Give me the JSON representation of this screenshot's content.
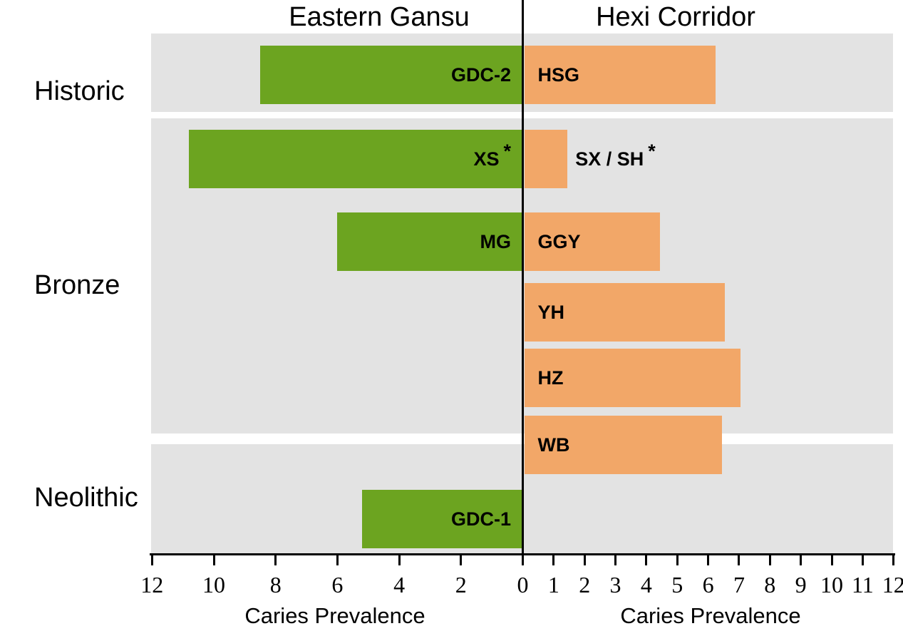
{
  "titles": {
    "left": "Eastern Gansu",
    "right": "Hexi Corridor"
  },
  "periods": [
    {
      "label": "Historic"
    },
    {
      "label": "Bronze"
    },
    {
      "label": "Neolithic"
    }
  ],
  "axis": {
    "caption": "Caries Prevalence",
    "left_tick_labels": [
      12,
      10,
      8,
      6,
      4,
      2
    ],
    "center_tick_label": 0,
    "right_tick_labels": [
      1,
      2,
      3,
      4,
      5,
      6,
      7,
      8,
      9,
      10,
      11,
      12
    ],
    "unit_max": 12
  },
  "colors": {
    "eastern_gansu_green": "#6ca420",
    "hexi_corridor_orange": "#f2a768",
    "panel_gray": "#e3e3e3",
    "axis_black": "#000000"
  },
  "chart_data": {
    "type": "bar",
    "variant": "diverging-horizontal-pyramid",
    "xlabel": "Caries Prevalence",
    "left_axis_range": [
      12,
      0
    ],
    "right_axis_range": [
      0,
      12
    ],
    "left_series_name": "Eastern Gansu",
    "right_series_name": "Hexi Corridor",
    "grid": false,
    "bars": [
      {
        "site": "GDC-2",
        "marker": "",
        "period": "Historic",
        "region": "Eastern Gansu",
        "side": "left",
        "row": 0,
        "value": 8.5,
        "label_inside": true
      },
      {
        "site": "HSG",
        "marker": "",
        "period": "Historic",
        "region": "Hexi Corridor",
        "side": "right",
        "row": 0,
        "value": 6.2,
        "label_inside": true
      },
      {
        "site": "XS",
        "marker": "*",
        "period": "Bronze",
        "region": "Eastern Gansu",
        "side": "left",
        "row": 1,
        "value": 10.8,
        "label_inside": true
      },
      {
        "site": "SX / SH",
        "marker": "*",
        "period": "Bronze",
        "region": "Hexi Corridor",
        "side": "right",
        "row": 1,
        "value": 1.4,
        "label_inside": false
      },
      {
        "site": "MG",
        "marker": "",
        "period": "Bronze",
        "region": "Eastern Gansu",
        "side": "left",
        "row": 2,
        "value": 6.0,
        "label_inside": true
      },
      {
        "site": "GGY",
        "marker": "",
        "period": "Bronze",
        "region": "Hexi Corridor",
        "side": "right",
        "row": 2,
        "value": 4.4,
        "label_inside": true
      },
      {
        "site": "YH",
        "marker": "",
        "period": "Bronze",
        "region": "Hexi Corridor",
        "side": "right",
        "row": 3,
        "value": 6.5,
        "label_inside": true
      },
      {
        "site": "HZ",
        "marker": "",
        "period": "Bronze",
        "region": "Hexi Corridor",
        "side": "right",
        "row": 4,
        "value": 7.0,
        "label_inside": true
      },
      {
        "site": "WB",
        "marker": "",
        "period": "Bronze",
        "region": "Hexi Corridor",
        "side": "right",
        "row": 5,
        "value": 6.4,
        "label_inside": true
      },
      {
        "site": "GDC-1",
        "marker": "",
        "period": "Neolithic",
        "region": "Eastern Gansu",
        "side": "left",
        "row": 6,
        "value": 5.2,
        "label_inside": true
      }
    ]
  }
}
